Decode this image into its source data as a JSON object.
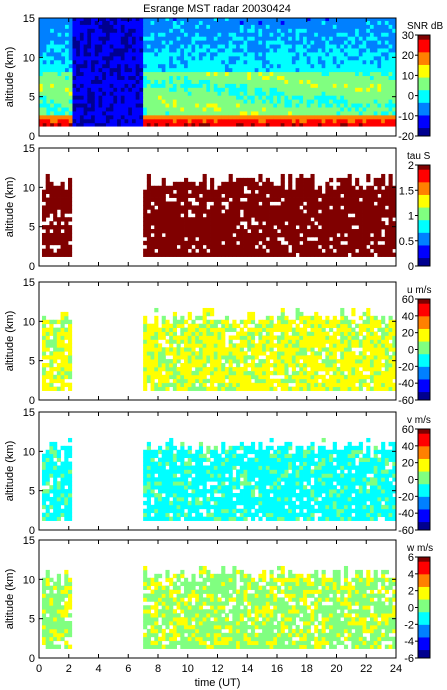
{
  "title": "Esrange MST radar 20030424",
  "colors": {
    "background": "#ffffff",
    "frame": "#000000",
    "colormap": [
      "#00008f",
      "#0000ff",
      "#0080ff",
      "#00ffff",
      "#80ff80",
      "#ffff00",
      "#ff8000",
      "#ff0000",
      "#800000"
    ]
  },
  "chart_data": [
    {
      "type": "heatmap",
      "quantity": "SNR",
      "xlabel": "",
      "ylabel": "altitude (km)",
      "xlim": [
        0,
        24
      ],
      "ylim": [
        0,
        15
      ],
      "yticks": [
        0,
        5,
        10,
        15
      ],
      "colorbar": {
        "label": "SNR dB",
        "range": [
          -20,
          30
        ],
        "ticks": [
          -20,
          -10,
          0,
          10,
          20,
          30
        ]
      },
      "data_gaps_hours": [
        [
          2.2,
          7.0
        ]
      ],
      "observed_altitude_km": [
        1.2,
        15
      ],
      "features": "strong signal near 1.5-2 km; weaker layers near 4-8 km; noise floor above"
    },
    {
      "type": "heatmap",
      "quantity": "tau",
      "xlabel": "",
      "ylabel": "altitude (km)",
      "xlim": [
        0,
        24
      ],
      "ylim": [
        0,
        15
      ],
      "yticks": [
        0,
        5,
        10,
        15
      ],
      "colorbar": {
        "label": "tau S",
        "range": [
          0,
          2
        ],
        "ticks": [
          0,
          0.5,
          1,
          1.5,
          2
        ]
      },
      "data_intervals_hours": [
        [
          0.2,
          2.2
        ],
        [
          7.0,
          24
        ]
      ],
      "top_altitude_km": 10.5,
      "dominant_value": 2
    },
    {
      "type": "heatmap",
      "quantity": "u",
      "xlabel": "",
      "ylabel": "altitude (km)",
      "xlim": [
        0,
        24
      ],
      "ylim": [
        0,
        15
      ],
      "yticks": [
        0,
        5,
        10,
        15
      ],
      "colorbar": {
        "label": "u m/s",
        "range": [
          -60,
          60
        ],
        "ticks": [
          -60,
          -40,
          -20,
          0,
          20,
          40,
          60
        ]
      },
      "data_intervals_hours": [
        [
          0.2,
          2.2
        ],
        [
          7.0,
          24
        ]
      ],
      "top_altitude_km": 10.5,
      "dominant_value": 10
    },
    {
      "type": "heatmap",
      "quantity": "v",
      "xlabel": "",
      "ylabel": "altitude (km)",
      "xlim": [
        0,
        24
      ],
      "ylim": [
        0,
        15
      ],
      "yticks": [
        0,
        5,
        10,
        15
      ],
      "colorbar": {
        "label": "v m/s",
        "range": [
          -60,
          60
        ],
        "ticks": [
          -60,
          -40,
          -20,
          0,
          20,
          40,
          60
        ]
      },
      "data_intervals_hours": [
        [
          0.2,
          2.2
        ],
        [
          7.0,
          24
        ]
      ],
      "top_altitude_km": 10.5,
      "dominant_value": -12
    },
    {
      "type": "heatmap",
      "quantity": "w",
      "xlabel": "time (UT)",
      "ylabel": "altitude (km)",
      "xlim": [
        0,
        24
      ],
      "ylim": [
        0,
        15
      ],
      "yticks": [
        0,
        5,
        10,
        15
      ],
      "xticks": [
        0,
        2,
        4,
        6,
        8,
        10,
        12,
        14,
        16,
        18,
        20,
        22,
        24
      ],
      "colorbar": {
        "label": "w m/s",
        "range": [
          -6,
          6
        ],
        "ticks": [
          -6,
          -4,
          -2,
          0,
          2,
          4,
          6
        ]
      },
      "data_intervals_hours": [
        [
          0.2,
          2.2
        ],
        [
          7.0,
          24
        ]
      ],
      "top_altitude_km": 10.5,
      "dominant_value": 0.5
    }
  ]
}
